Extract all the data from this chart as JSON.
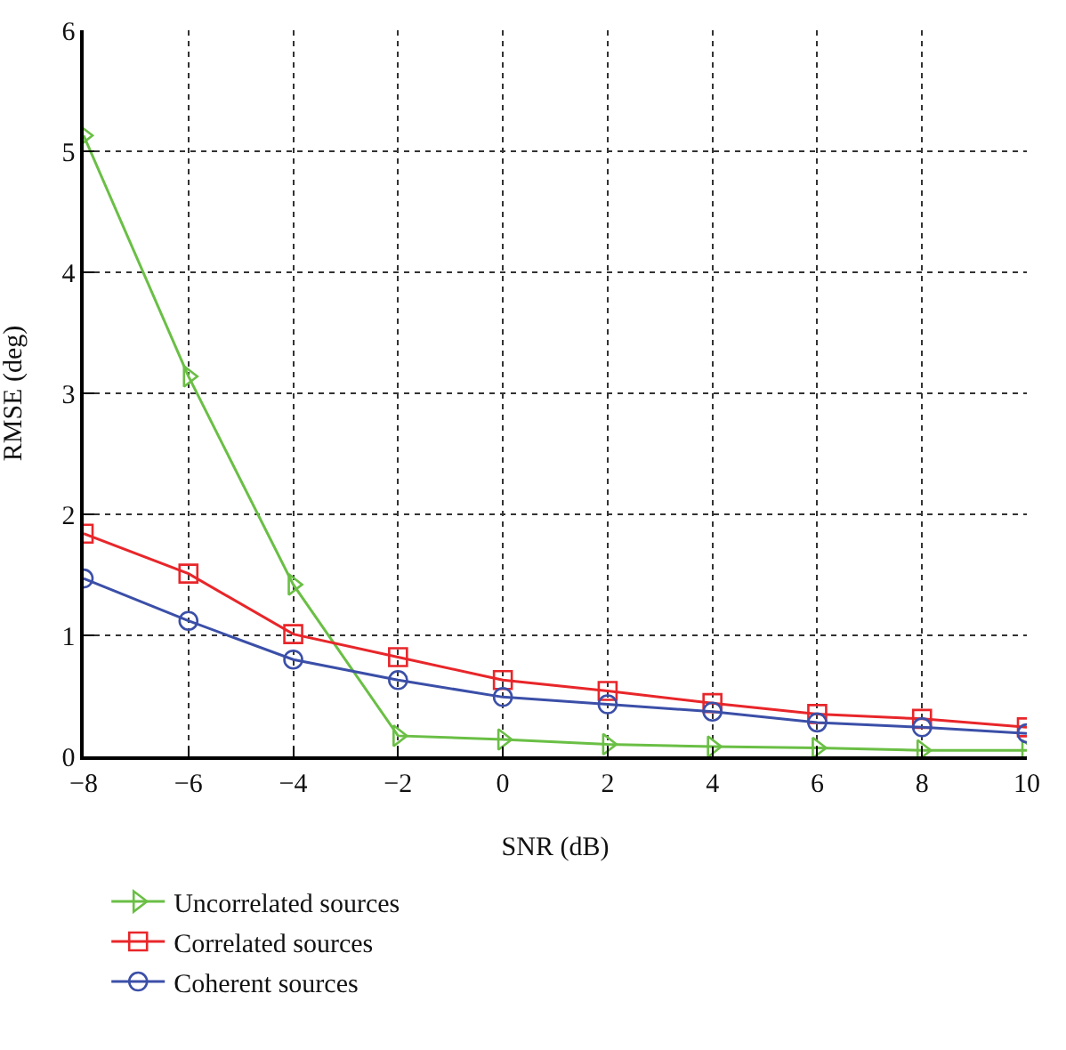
{
  "chart_data": {
    "type": "line",
    "xlabel": "SNR (dB)",
    "ylabel": "RMSE (deg)",
    "x": [
      -8,
      -6,
      -4,
      -2,
      0,
      2,
      4,
      6,
      8,
      10
    ],
    "series": [
      {
        "name": "Uncorrelated sources",
        "color": "#6abf45",
        "marker": "triangle",
        "values": [
          5.13,
          3.14,
          1.42,
          0.17,
          0.14,
          0.1,
          0.08,
          0.07,
          0.05,
          0.05
        ]
      },
      {
        "name": "Correlated sources",
        "color": "#e8262a",
        "marker": "square",
        "values": [
          1.84,
          1.51,
          1.01,
          0.82,
          0.63,
          0.54,
          0.44,
          0.35,
          0.31,
          0.24
        ]
      },
      {
        "name": "Coherent sources",
        "color": "#3b4fa8",
        "marker": "circle",
        "values": [
          1.47,
          1.12,
          0.8,
          0.63,
          0.49,
          0.43,
          0.37,
          0.28,
          0.24,
          0.19
        ]
      }
    ],
    "xlim": [
      -8,
      10
    ],
    "xticks": [
      {
        "value": -8,
        "label": "−8"
      },
      {
        "value": -6,
        "label": "−6"
      },
      {
        "value": -4,
        "label": "−4"
      },
      {
        "value": -2,
        "label": "−2"
      },
      0,
      2,
      4,
      6,
      8,
      10
    ],
    "ylim": [
      0,
      6
    ],
    "yticks": [
      0,
      1,
      2,
      3,
      4,
      5,
      6
    ],
    "grid": true,
    "legend": "bottom left",
    "line_style": "solid"
  }
}
